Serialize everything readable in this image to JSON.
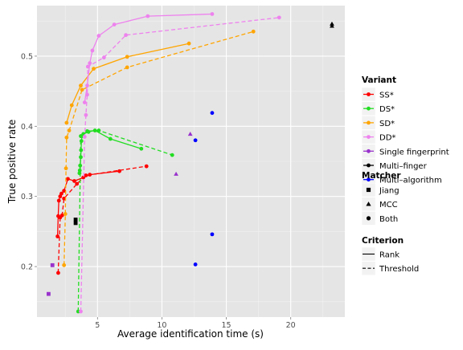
{
  "chart_data": {
    "type": "line",
    "xlabel": "Average identification time (s)",
    "ylabel": "True positive rate",
    "xlim": [
      0.3,
      24.2
    ],
    "ylim": [
      0.128,
      0.572
    ],
    "x_ticks": [
      5,
      10,
      15,
      20
    ],
    "y_ticks": [
      0.2,
      0.3,
      0.4,
      0.5
    ],
    "grid": true,
    "legend_position": "right",
    "colors": {
      "SS*": "#ff0000",
      "DS*": "#22dd22",
      "SD*": "#ffa500",
      "DD*": "#ee82ee",
      "Single fingerprint": "#9932cc",
      "Multi-finger": "#000000",
      "Multi-algorithm": "#0000ff"
    },
    "series": [
      {
        "name": "SS*",
        "matcher": "Both",
        "criterion": "Rank",
        "color": "#ff0000",
        "points": [
          [
            1.9,
            0.243
          ],
          [
            1.95,
            0.272
          ],
          [
            2.0,
            0.294
          ],
          [
            2.1,
            0.3
          ],
          [
            2.2,
            0.304
          ],
          [
            2.4,
            0.308
          ],
          [
            2.7,
            0.325
          ],
          [
            3.2,
            0.322
          ],
          [
            3.9,
            0.327
          ],
          [
            4.4,
            0.331
          ],
          [
            6.7,
            0.336
          ]
        ]
      },
      {
        "name": "SS*",
        "matcher": "Both",
        "criterion": "Threshold",
        "color": "#ff0000",
        "points": [
          [
            1.95,
            0.191
          ],
          [
            2.1,
            0.27
          ],
          [
            2.25,
            0.273
          ],
          [
            2.4,
            0.297
          ],
          [
            3.4,
            0.318
          ],
          [
            4.1,
            0.33
          ],
          [
            8.8,
            0.343
          ]
        ]
      },
      {
        "name": "DS*",
        "matcher": "Both",
        "criterion": "Rank",
        "color": "#22dd22",
        "points": [
          [
            3.6,
            0.333
          ],
          [
            3.62,
            0.337
          ],
          [
            3.65,
            0.344
          ],
          [
            3.7,
            0.356
          ],
          [
            3.72,
            0.366
          ],
          [
            3.75,
            0.379
          ],
          [
            3.8,
            0.386
          ],
          [
            3.9,
            0.389
          ],
          [
            4.3,
            0.392
          ],
          [
            4.8,
            0.394
          ],
          [
            6.0,
            0.382
          ],
          [
            8.4,
            0.368
          ]
        ]
      },
      {
        "name": "DS*",
        "matcher": "Both",
        "criterion": "Threshold",
        "color": "#22dd22",
        "points": [
          [
            3.5,
            0.136
          ],
          [
            3.7,
            0.386
          ],
          [
            4.2,
            0.393
          ],
          [
            5.1,
            0.394
          ],
          [
            10.8,
            0.359
          ]
        ]
      },
      {
        "name": "SD*",
        "matcher": "Both",
        "criterion": "Rank",
        "color": "#ffa500",
        "points": [
          [
            2.6,
            0.405
          ],
          [
            3.0,
            0.43
          ],
          [
            3.7,
            0.458
          ],
          [
            4.7,
            0.482
          ],
          [
            7.3,
            0.499
          ],
          [
            12.1,
            0.518
          ]
        ]
      },
      {
        "name": "SD*",
        "matcher": "Both",
        "criterion": "Threshold",
        "color": "#ffa500",
        "points": [
          [
            2.4,
            0.202
          ],
          [
            2.5,
            0.275
          ],
          [
            2.55,
            0.34
          ],
          [
            2.6,
            0.384
          ],
          [
            2.8,
            0.394
          ],
          [
            3.8,
            0.452
          ],
          [
            7.3,
            0.484
          ],
          [
            17.1,
            0.535
          ]
        ]
      },
      {
        "name": "DD*",
        "matcher": "Both",
        "criterion": "Rank",
        "color": "#ee82ee",
        "points": [
          [
            4.0,
            0.434
          ],
          [
            4.2,
            0.458
          ],
          [
            4.4,
            0.49
          ],
          [
            4.6,
            0.508
          ],
          [
            5.1,
            0.529
          ],
          [
            6.3,
            0.545
          ],
          [
            8.9,
            0.557
          ],
          [
            13.9,
            0.56
          ]
        ]
      },
      {
        "name": "DD*",
        "matcher": "Both",
        "criterion": "Threshold",
        "color": "#ee82ee",
        "points": [
          [
            3.7,
            0.136
          ],
          [
            4.0,
            0.385
          ],
          [
            4.1,
            0.416
          ],
          [
            4.2,
            0.445
          ],
          [
            4.25,
            0.485
          ],
          [
            5.5,
            0.498
          ],
          [
            7.2,
            0.53
          ],
          [
            19.1,
            0.555
          ]
        ]
      }
    ],
    "points": [
      {
        "name": "Single fingerprint",
        "matcher": "Jiang",
        "x": 1.2,
        "y": 0.161,
        "color": "#9932cc"
      },
      {
        "name": "Single fingerprint",
        "matcher": "Jiang",
        "x": 1.5,
        "y": 0.202,
        "color": "#9932cc"
      },
      {
        "name": "Single fingerprint",
        "matcher": "MCC",
        "x": 12.2,
        "y": 0.389,
        "color": "#9932cc"
      },
      {
        "name": "Single fingerprint",
        "matcher": "MCC",
        "x": 11.1,
        "y": 0.332,
        "color": "#9932cc"
      },
      {
        "name": "Multi-finger",
        "matcher": "Jiang",
        "x": 3.3,
        "y": 0.267,
        "color": "#000000"
      },
      {
        "name": "Multi-finger",
        "matcher": "Jiang",
        "x": 3.3,
        "y": 0.262,
        "color": "#000000"
      },
      {
        "name": "Multi-finger",
        "matcher": "MCC",
        "x": 23.2,
        "y": 0.546,
        "color": "#000000"
      },
      {
        "name": "Multi-finger",
        "matcher": "MCC",
        "x": 23.2,
        "y": 0.543,
        "color": "#000000"
      },
      {
        "name": "Multi-algorithm",
        "matcher": "Both",
        "x": 13.9,
        "y": 0.419,
        "color": "#0000ff"
      },
      {
        "name": "Multi-algorithm",
        "matcher": "Both",
        "x": 12.6,
        "y": 0.38,
        "color": "#0000ff"
      },
      {
        "name": "Multi-algorithm",
        "matcher": "Both",
        "x": 13.9,
        "y": 0.246,
        "color": "#0000ff"
      },
      {
        "name": "Multi-algorithm",
        "matcher": "Both",
        "x": 12.6,
        "y": 0.203,
        "color": "#0000ff"
      }
    ],
    "legend": {
      "variant": {
        "title": "Variant",
        "items": [
          {
            "label": "SS*",
            "color": "#ff0000"
          },
          {
            "label": "DS*",
            "color": "#22dd22"
          },
          {
            "label": "SD*",
            "color": "#ffa500"
          },
          {
            "label": "DD*",
            "color": "#ee82ee"
          },
          {
            "label": "Single fingerprint",
            "color": "#9932cc"
          },
          {
            "label": "Multi–finger",
            "color": "#000000"
          },
          {
            "label": "Multi–algorithm",
            "color": "#0000ff"
          }
        ]
      },
      "matcher": {
        "title": "Matcher",
        "items": [
          {
            "label": "Jiang",
            "shape": "square"
          },
          {
            "label": "MCC",
            "shape": "triangle"
          },
          {
            "label": "Both",
            "shape": "circle"
          }
        ]
      },
      "criterion": {
        "title": "Criterion",
        "items": [
          {
            "label": "Rank",
            "linetype": "solid"
          },
          {
            "label": "Threshold",
            "linetype": "dashed"
          }
        ]
      }
    }
  }
}
